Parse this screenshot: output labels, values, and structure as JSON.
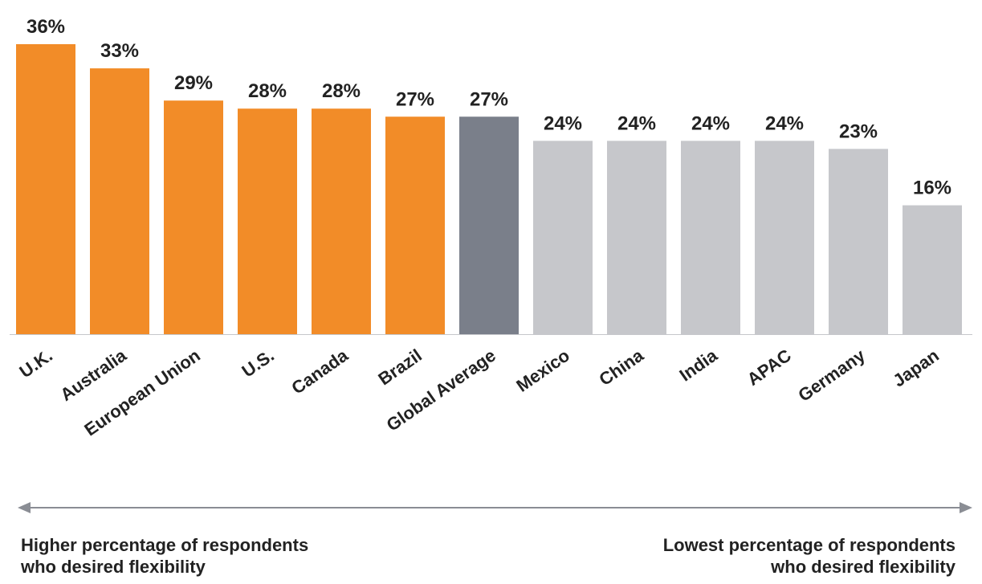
{
  "chart_data": {
    "type": "bar",
    "categories": [
      "U.K.",
      "Australia",
      "European Union",
      "U.S.",
      "Canada",
      "Brazil",
      "Global Average",
      "Mexico",
      "China",
      "India",
      "APAC",
      "Germany",
      "Japan"
    ],
    "values": [
      36,
      33,
      29,
      28,
      28,
      27,
      27,
      24,
      24,
      24,
      24,
      23,
      16
    ],
    "data_labels": [
      "36%",
      "33%",
      "29%",
      "28%",
      "28%",
      "27%",
      "27%",
      "24%",
      "24%",
      "24%",
      "24%",
      "23%",
      "16%"
    ],
    "groups": [
      "higher",
      "higher",
      "higher",
      "higher",
      "higher",
      "higher",
      "average",
      "lower",
      "lower",
      "lower",
      "lower",
      "lower",
      "lower"
    ],
    "colors": {
      "higher": "#F28C28",
      "average": "#7A7F8A",
      "lower": "#C6C7CB",
      "arrow": "#8A8D94",
      "baseline": "#C6C7CB"
    },
    "ylim": [
      0,
      36
    ],
    "grid": false,
    "legend": "none"
  },
  "annotations": {
    "left_line1": "Higher percentage of respondents",
    "left_line2": "who desired flexibility",
    "right_line1": "Lowest percentage of respondents",
    "right_line2": "who desired flexibility"
  }
}
